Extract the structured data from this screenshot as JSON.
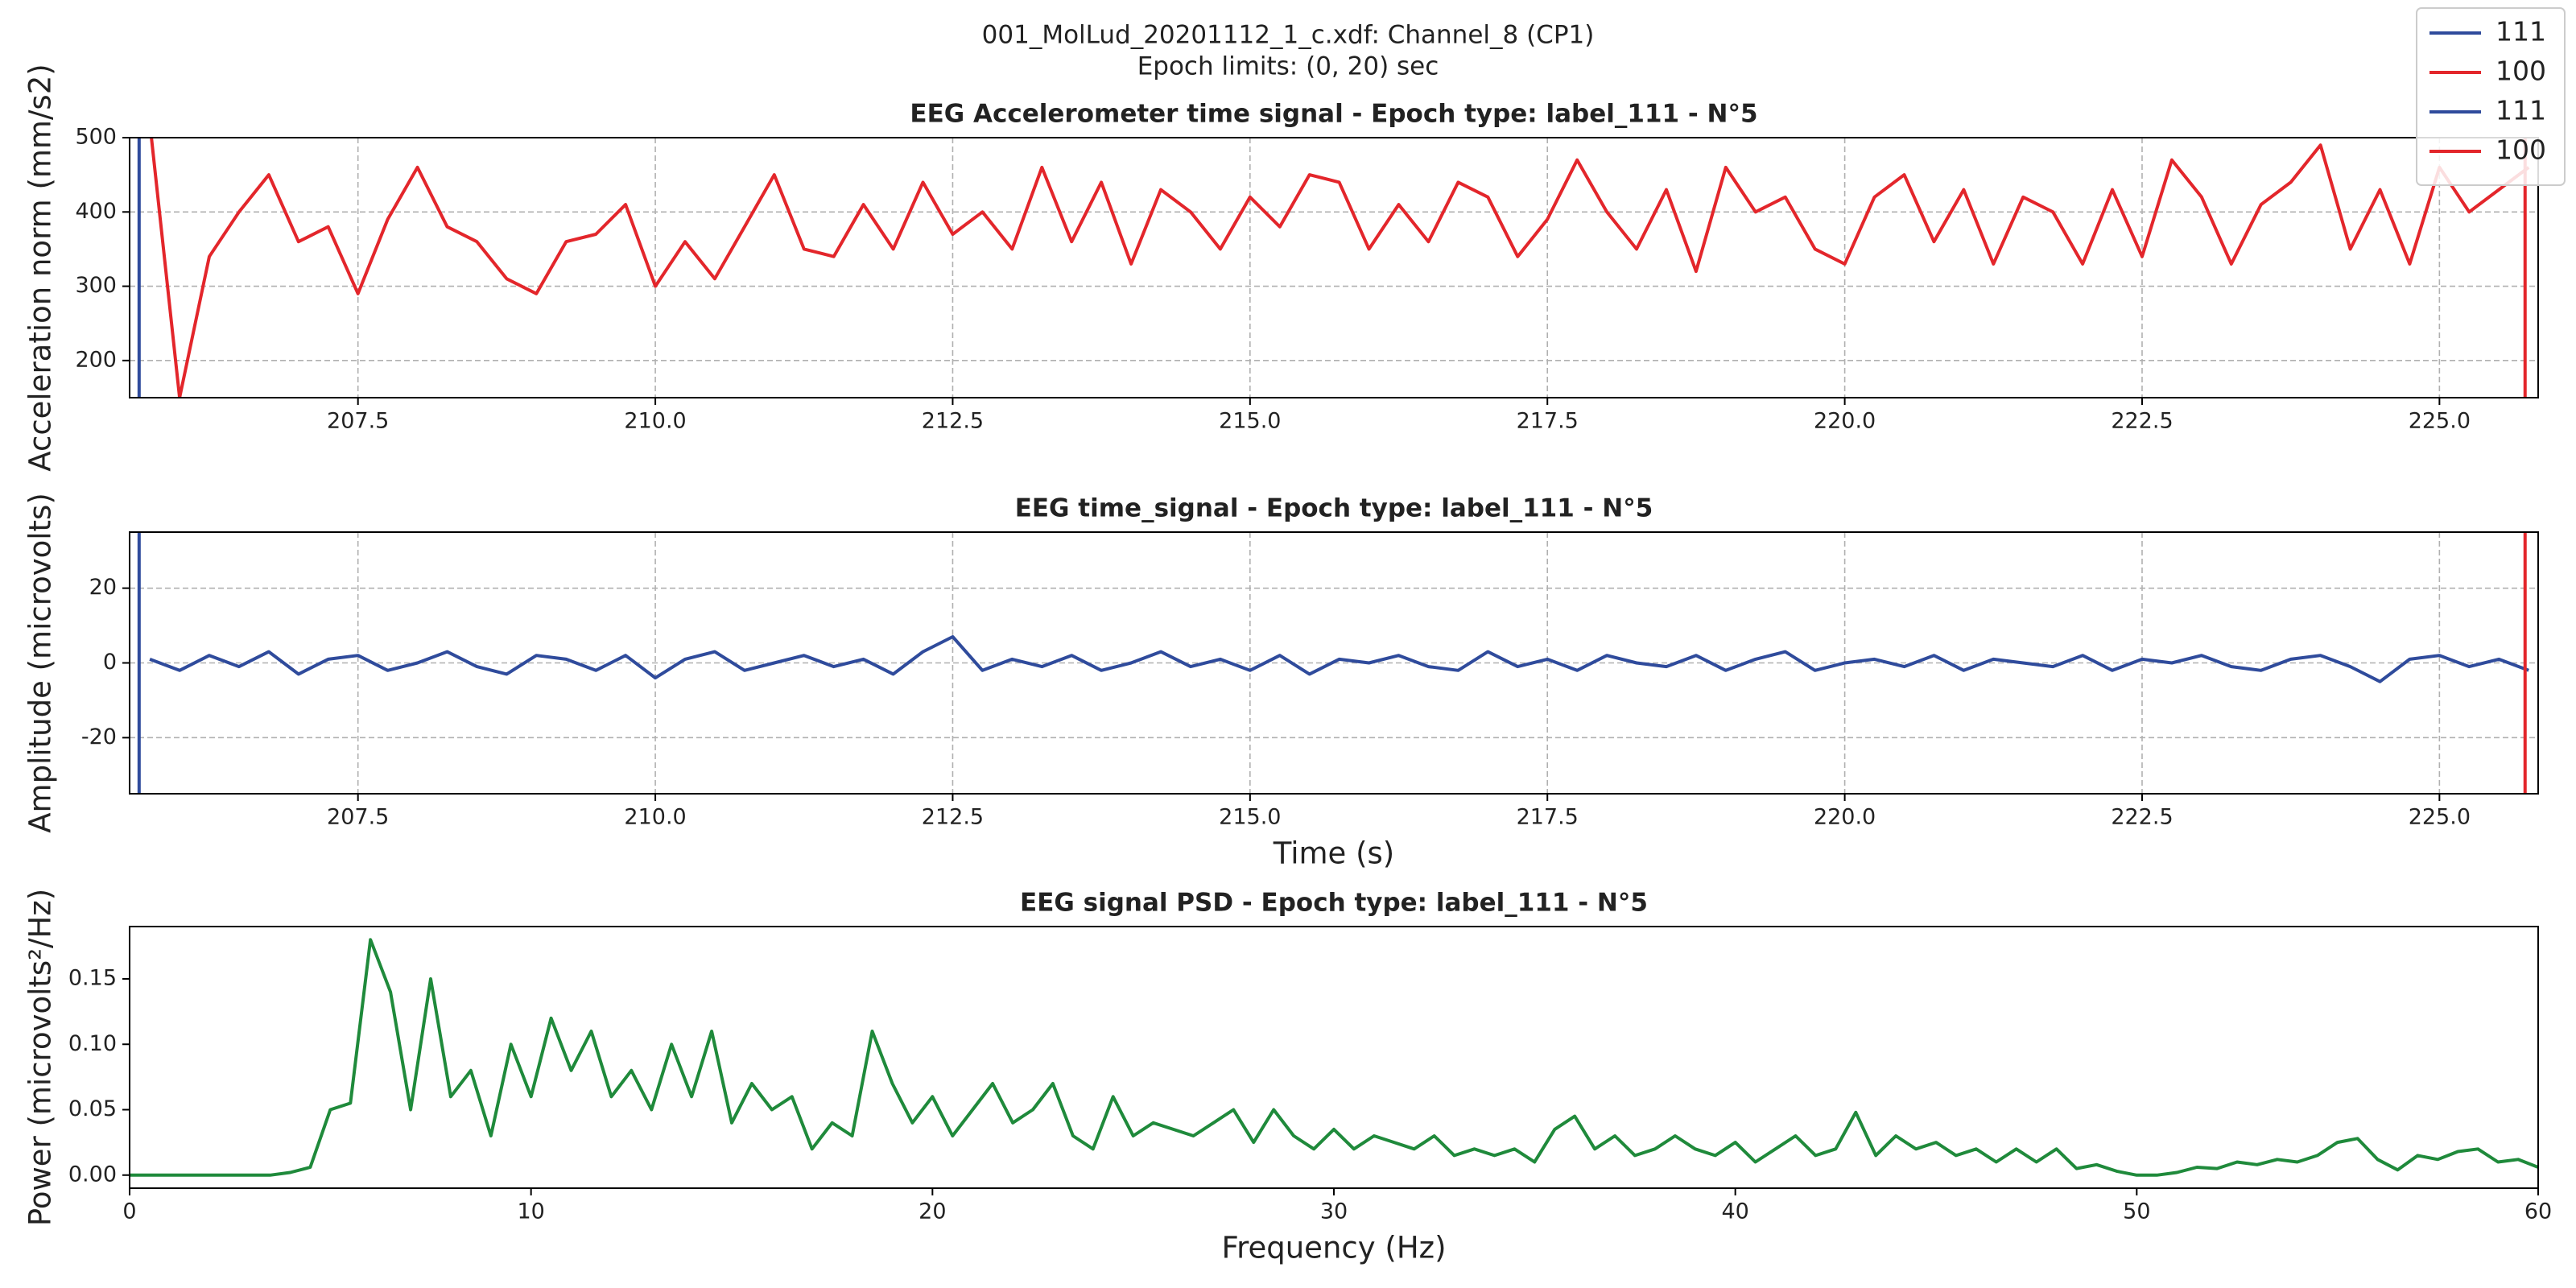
{
  "figure": {
    "title": "001_MolLud_20201112_1_c.xdf: Channel_8 (CP1)",
    "subtitle": "Epoch limits: (0, 20) sec",
    "legend": "upper right"
  },
  "chart_data": [
    {
      "type": "line",
      "title": "EEG Accelerometer time signal - Epoch type: label_111 - N°5",
      "ylabel": "Acceleration norm (mm/s2)",
      "x": [
        205.75,
        206,
        206.25,
        206.5,
        206.75,
        207,
        207.25,
        207.5,
        207.75,
        208,
        208.25,
        208.5,
        208.75,
        209,
        209.25,
        209.5,
        209.75,
        210,
        210.25,
        210.5,
        210.75,
        211,
        211.25,
        211.5,
        211.75,
        212,
        212.25,
        212.5,
        212.75,
        213,
        213.25,
        213.5,
        213.75,
        214,
        214.25,
        214.5,
        214.75,
        215,
        215.25,
        215.5,
        215.75,
        216,
        216.25,
        216.5,
        216.75,
        217,
        217.25,
        217.5,
        217.75,
        218,
        218.25,
        218.5,
        218.75,
        219,
        219.25,
        219.5,
        219.75,
        220,
        220.25,
        220.5,
        220.75,
        221,
        221.25,
        221.5,
        221.75,
        222,
        222.25,
        222.5,
        222.75,
        223,
        223.25,
        223.5,
        223.75,
        224,
        224.25,
        224.5,
        224.75,
        225,
        225.25,
        225.5,
        225.75
      ],
      "series": [
        {
          "color": "#e3262b",
          "values": [
            520,
            150,
            340,
            400,
            450,
            360,
            380,
            290,
            390,
            460,
            380,
            360,
            310,
            290,
            360,
            370,
            410,
            300,
            360,
            310,
            380,
            450,
            350,
            340,
            410,
            350,
            440,
            370,
            400,
            350,
            460,
            360,
            440,
            330,
            430,
            400,
            350,
            420,
            380,
            450,
            440,
            350,
            410,
            360,
            440,
            420,
            340,
            390,
            470,
            400,
            350,
            430,
            320,
            460,
            400,
            420,
            350,
            330,
            420,
            450,
            360,
            430,
            330,
            420,
            400,
            330,
            430,
            340,
            470,
            420,
            330,
            410,
            440,
            490,
            350,
            430,
            330,
            460,
            400,
            430,
            460
          ]
        }
      ],
      "markers": [
        {
          "name": "111",
          "color": "#2f4b9c",
          "x": 205.66
        },
        {
          "name": "100",
          "color": "#e3262b",
          "x": 225.72
        }
      ],
      "xlim": [
        205.58,
        225.83
      ],
      "xticks": [
        207.5,
        {
          "value": 210,
          "label": "210.0"
        },
        212.5,
        {
          "value": 215,
          "label": "215.0"
        },
        217.5,
        {
          "value": 220,
          "label": "220.0"
        },
        222.5,
        {
          "value": 225,
          "label": "225.0"
        }
      ],
      "ylim": [
        150,
        500
      ],
      "yticks": [
        200,
        300,
        400,
        500
      ],
      "grid": true
    },
    {
      "type": "line",
      "title": "EEG time_signal - Epoch type: label_111 - N°5",
      "ylabel": "Amplitude  (microvolts)",
      "xlabel": "Time (s)",
      "x": [
        205.75,
        206,
        206.25,
        206.5,
        206.75,
        207,
        207.25,
        207.5,
        207.75,
        208,
        208.25,
        208.5,
        208.75,
        209,
        209.25,
        209.5,
        209.75,
        210,
        210.25,
        210.5,
        210.75,
        211,
        211.25,
        211.5,
        211.75,
        212,
        212.25,
        212.5,
        212.75,
        213,
        213.25,
        213.5,
        213.75,
        214,
        214.25,
        214.5,
        214.75,
        215,
        215.25,
        215.5,
        215.75,
        216,
        216.25,
        216.5,
        216.75,
        217,
        217.25,
        217.5,
        217.75,
        218,
        218.25,
        218.5,
        218.75,
        219,
        219.25,
        219.5,
        219.75,
        220,
        220.25,
        220.5,
        220.75,
        221,
        221.25,
        221.5,
        221.75,
        222,
        222.25,
        222.5,
        222.75,
        223,
        223.25,
        223.5,
        223.75,
        224,
        224.25,
        224.5,
        224.75,
        225,
        225.25,
        225.5,
        225.75
      ],
      "series": [
        {
          "color": "#2f4b9c",
          "values": [
            1,
            -2,
            2,
            -1,
            3,
            -3,
            1,
            2,
            -2,
            0,
            3,
            -1,
            -3,
            2,
            1,
            -2,
            2,
            -4,
            1,
            3,
            -2,
            0,
            2,
            -1,
            1,
            -3,
            3,
            7,
            -2,
            1,
            -1,
            2,
            -2,
            0,
            3,
            -1,
            1,
            -2,
            2,
            -3,
            1,
            0,
            2,
            -1,
            -2,
            3,
            -1,
            1,
            -2,
            2,
            0,
            -1,
            2,
            -2,
            1,
            3,
            -2,
            0,
            1,
            -1,
            2,
            -2,
            1,
            0,
            -1,
            2,
            -2,
            1,
            0,
            2,
            -1,
            -2,
            1,
            2,
            -1,
            -5,
            1,
            2,
            -1,
            1,
            -2
          ]
        }
      ],
      "markers": [
        {
          "name": "111",
          "color": "#2f4b9c",
          "x": 205.66
        },
        {
          "name": "100",
          "color": "#e3262b",
          "x": 225.72
        }
      ],
      "xlim": [
        205.58,
        225.83
      ],
      "xticks": [
        207.5,
        {
          "value": 210,
          "label": "210.0"
        },
        212.5,
        {
          "value": 215,
          "label": "215.0"
        },
        217.5,
        {
          "value": 220,
          "label": "220.0"
        },
        222.5,
        {
          "value": 225,
          "label": "225.0"
        }
      ],
      "ylim": [
        -35,
        35
      ],
      "yticks": [
        -20,
        0,
        20
      ],
      "grid": true
    },
    {
      "type": "line",
      "title": "EEG signal PSD - Epoch type: label_111 - N°5",
      "ylabel": "Power (microvolts²/Hz)",
      "xlabel": "Frequency (Hz)",
      "x": [
        0,
        0.5,
        1,
        1.5,
        2,
        2.5,
        3,
        3.5,
        4,
        4.5,
        5,
        5.5,
        6,
        6.5,
        7,
        7.5,
        8,
        8.5,
        9,
        9.5,
        10,
        10.5,
        11,
        11.5,
        12,
        12.5,
        13,
        13.5,
        14,
        14.5,
        15,
        15.5,
        16,
        16.5,
        17,
        17.5,
        18,
        18.5,
        19,
        19.5,
        20,
        20.5,
        21,
        21.5,
        22,
        22.5,
        23,
        23.5,
        24,
        24.5,
        25,
        25.5,
        26,
        26.5,
        27,
        27.5,
        28,
        28.5,
        29,
        29.5,
        30,
        30.5,
        31,
        31.5,
        32,
        32.5,
        33,
        33.5,
        34,
        34.5,
        35,
        35.5,
        36,
        36.5,
        37,
        37.5,
        38,
        38.5,
        39,
        39.5,
        40,
        40.5,
        41,
        41.5,
        42,
        42.5,
        43,
        43.5,
        44,
        44.5,
        45,
        45.5,
        46,
        46.5,
        47,
        47.5,
        48,
        48.5,
        49,
        49.5,
        50,
        50.5,
        51,
        51.5,
        52,
        52.5,
        53,
        53.5,
        54,
        54.5,
        55,
        55.5,
        56,
        56.5,
        57,
        57.5,
        58,
        58.5,
        59,
        59.5,
        60
      ],
      "series": [
        {
          "color": "#1f8a3b",
          "values": [
            0,
            0,
            0,
            0,
            0,
            0,
            0,
            0,
            0.002,
            0.006,
            0.05,
            0.055,
            0.18,
            0.14,
            0.05,
            0.15,
            0.06,
            0.08,
            0.03,
            0.1,
            0.06,
            0.12,
            0.08,
            0.11,
            0.06,
            0.08,
            0.05,
            0.1,
            0.06,
            0.11,
            0.04,
            0.07,
            0.05,
            0.06,
            0.02,
            0.04,
            0.03,
            0.11,
            0.07,
            0.04,
            0.06,
            0.03,
            0.05,
            0.07,
            0.04,
            0.05,
            0.07,
            0.03,
            0.02,
            0.06,
            0.03,
            0.04,
            0.035,
            0.03,
            0.04,
            0.05,
            0.025,
            0.05,
            0.03,
            0.02,
            0.035,
            0.02,
            0.03,
            0.025,
            0.02,
            0.03,
            0.015,
            0.02,
            0.015,
            0.02,
            0.01,
            0.035,
            0.045,
            0.02,
            0.03,
            0.015,
            0.02,
            0.03,
            0.02,
            0.015,
            0.025,
            0.01,
            0.02,
            0.03,
            0.015,
            0.02,
            0.048,
            0.015,
            0.03,
            0.02,
            0.025,
            0.015,
            0.02,
            0.01,
            0.02,
            0.01,
            0.02,
            0.005,
            0.008,
            0.003,
            0,
            0,
            0.002,
            0.006,
            0.005,
            0.01,
            0.008,
            0.012,
            0.01,
            0.015,
            0.025,
            0.028,
            0.012,
            0.004,
            0.015,
            0.012,
            0.018,
            0.02,
            0.01,
            0.012,
            0.006
          ]
        }
      ],
      "xlim": [
        0,
        60
      ],
      "xticks": [
        0,
        10,
        20,
        30,
        40,
        50,
        60
      ],
      "ylim": [
        -0.01,
        0.19
      ],
      "yticks": [
        {
          "value": 0,
          "label": "0.00"
        },
        0.05,
        {
          "value": 0.1,
          "label": "0.10"
        },
        0.15
      ],
      "grid": false
    }
  ]
}
